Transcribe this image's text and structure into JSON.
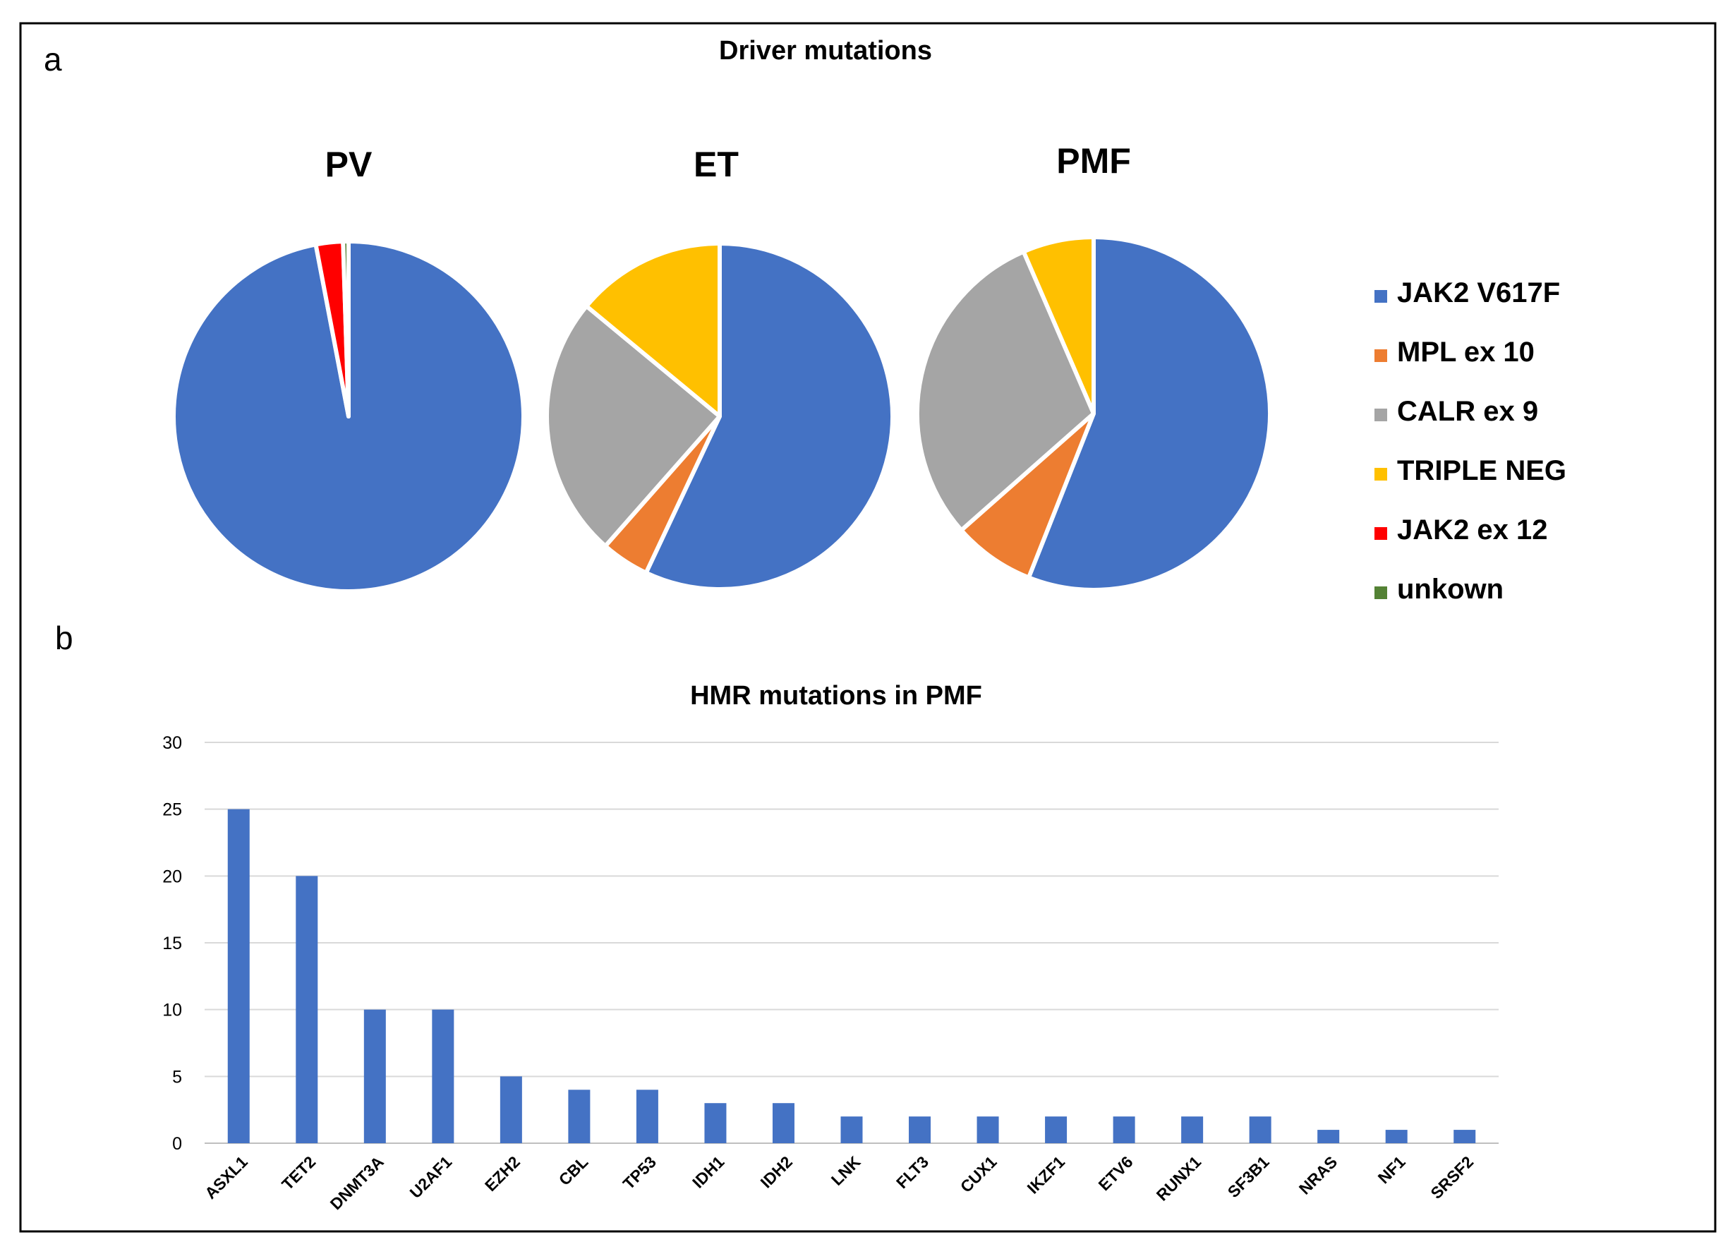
{
  "panel_labels": {
    "a": "a",
    "b": "b"
  },
  "colors": {
    "blue": "#4472C4",
    "orange": "#ED7D31",
    "gray": "#A5A5A5",
    "yellow": "#FFC000",
    "red": "#FF0000",
    "green": "#548235",
    "grid": "#d9d9d9",
    "axis_text": "#000000",
    "border": "#000000"
  },
  "chart_data": [
    {
      "type": "pie",
      "title": "Driver mutations",
      "legend": {
        "placement": "right",
        "entries": [
          {
            "label": "JAK2 V617F",
            "color": "#4472C4"
          },
          {
            "label": "MPL ex 10",
            "color": "#ED7D31"
          },
          {
            "label": "CALR ex 9",
            "color": "#A5A5A5"
          },
          {
            "label": "TRIPLE NEG",
            "color": "#FFC000"
          },
          {
            "label": "JAK2 ex 12",
            "color": "#FF0000"
          },
          {
            "label": "unkown",
            "color": "#548235"
          }
        ]
      },
      "pies": [
        {
          "title": "PV",
          "slices": [
            {
              "label": "JAK2 V617F",
              "value": 97
            },
            {
              "label": "MPL ex 10",
              "value": 0
            },
            {
              "label": "CALR ex 9",
              "value": 0
            },
            {
              "label": "TRIPLE NEG",
              "value": 0
            },
            {
              "label": "JAK2 ex 12",
              "value": 2.5
            },
            {
              "label": "unkown",
              "value": 0.5
            }
          ]
        },
        {
          "title": "ET",
          "slices": [
            {
              "label": "JAK2 V617F",
              "value": 57
            },
            {
              "label": "MPL ex 10",
              "value": 4.5
            },
            {
              "label": "CALR ex 9",
              "value": 24.5
            },
            {
              "label": "TRIPLE NEG",
              "value": 14
            },
            {
              "label": "JAK2 ex 12",
              "value": 0
            },
            {
              "label": "unkown",
              "value": 0
            }
          ]
        },
        {
          "title": "PMF",
          "slices": [
            {
              "label": "JAK2 V617F",
              "value": 56
            },
            {
              "label": "MPL ex 10",
              "value": 7.5
            },
            {
              "label": "CALR ex 9",
              "value": 30
            },
            {
              "label": "TRIPLE NEG",
              "value": 6.5
            },
            {
              "label": "JAK2 ex 12",
              "value": 0
            },
            {
              "label": "unkown",
              "value": 0
            }
          ]
        }
      ]
    },
    {
      "type": "bar",
      "title": "HMR mutations in PMF",
      "categories": [
        "ASXL1",
        "TET2",
        "DNMT3A",
        "U2AF1",
        "EZH2",
        "CBL",
        "TP53",
        "IDH1",
        "IDH2",
        "LNK",
        "FLT3",
        "CUX1",
        "IKZF1",
        "ETV6",
        "RUNX1",
        "SF3B1",
        "NRAS",
        "NF1",
        "SRSF2"
      ],
      "values": [
        25,
        20,
        10,
        10,
        5,
        4,
        4,
        3,
        3,
        2,
        2,
        2,
        2,
        2,
        2,
        2,
        1,
        1,
        1
      ],
      "yticks": [
        0,
        5,
        10,
        15,
        20,
        25,
        30
      ],
      "ylim": [
        0,
        30
      ],
      "grid": true,
      "xlabel": "",
      "ylabel": ""
    }
  ]
}
